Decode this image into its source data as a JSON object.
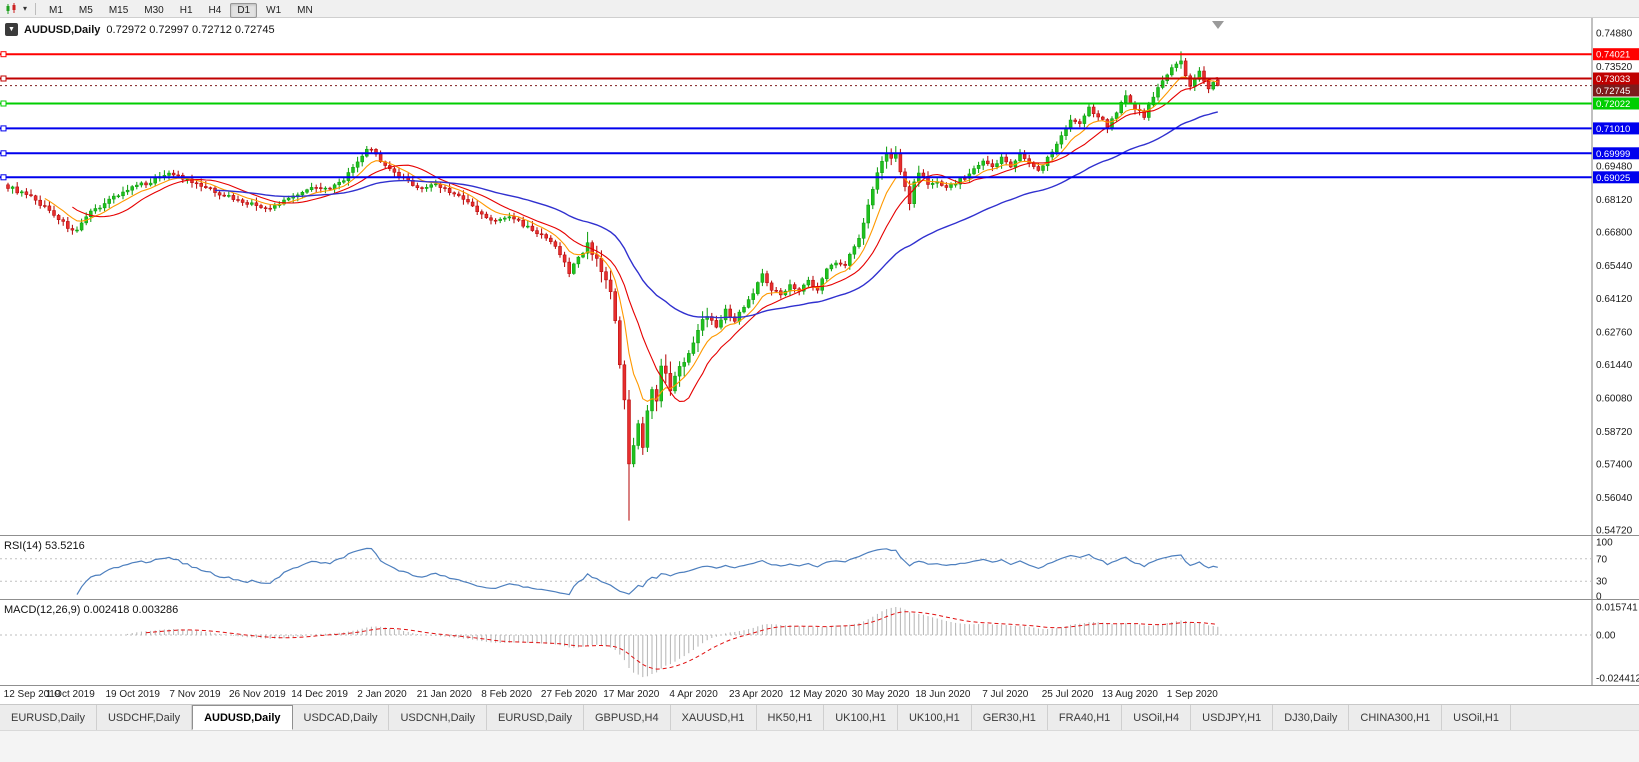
{
  "toolbar": {
    "timeframes": [
      {
        "label": "M1",
        "active": false
      },
      {
        "label": "M5",
        "active": false
      },
      {
        "label": "M15",
        "active": false
      },
      {
        "label": "M30",
        "active": false
      },
      {
        "label": "H1",
        "active": false
      },
      {
        "label": "H4",
        "active": false
      },
      {
        "label": "D1",
        "active": true
      },
      {
        "label": "W1",
        "active": false
      },
      {
        "label": "MN",
        "active": false
      }
    ]
  },
  "chart": {
    "symbol": "AUDUSD,Daily",
    "ohlc_text": "0.72972 0.72997 0.72712 0.72745",
    "quick_trade_glyph": "▼",
    "bid": {
      "label": "0.72745",
      "price": 0.72745,
      "color": "#7d1b1b"
    },
    "hlines": [
      {
        "label": "0.74021",
        "price": 0.74021,
        "color": "#ff0000"
      },
      {
        "label": "0.73033",
        "price": 0.73033,
        "color": "#c00000"
      },
      {
        "label": "0.72022",
        "price": 0.72022,
        "color": "#00ce00"
      },
      {
        "label": "0.71010",
        "price": 0.7101,
        "color": "#0000ee"
      },
      {
        "label": "0.69999",
        "price": 0.69999,
        "color": "#0000ee"
      },
      {
        "label": "0.69025",
        "price": 0.69025,
        "color": "#0000ee"
      }
    ],
    "price_ticks": [
      "0.74880",
      "0.73520",
      "0.72160",
      "0.70800",
      "0.69480",
      "0.68120",
      "0.66800",
      "0.65440",
      "0.64120",
      "0.62760",
      "0.61440",
      "0.60080",
      "0.58720",
      "0.57400",
      "0.56040",
      "0.54720"
    ],
    "date_labels": [
      "12 Sep 2019",
      "1 Oct 2019",
      "19 Oct 2019",
      "7 Nov 2019",
      "26 Nov 2019",
      "14 Dec 2019",
      "2 Jan 2020",
      "21 Jan 2020",
      "8 Feb 2020",
      "27 Feb 2020",
      "17 Mar 2020",
      "4 Apr 2020",
      "23 Apr 2020",
      "12 May 2020",
      "30 May 2020",
      "18 Jun 2020",
      "7 Jul 2020",
      "25 Jul 2020",
      "13 Aug 2020",
      "1 Sep 2020"
    ]
  },
  "indicators": {
    "rsi": {
      "label": "RSI(14) 53.5216",
      "levels": [
        {
          "value": 100,
          "label": "100"
        },
        {
          "value": 70,
          "label": "70"
        },
        {
          "value": 30,
          "label": "30"
        },
        {
          "value": 0,
          "label": "0"
        }
      ],
      "dashed_levels": [
        70,
        30
      ],
      "line_color": "#4d7fbe"
    },
    "macd": {
      "label": "MACD(12,26,9) 0.002418 0.003286",
      "levels": [
        {
          "label": "0.015741",
          "y": "top"
        },
        {
          "label": "0.00",
          "y": "zero"
        },
        {
          "label": "-0.024412",
          "y": "bottom"
        }
      ],
      "hist_color": "#b4b4b4",
      "signal_color": "#e01010"
    }
  },
  "chart_data": {
    "type": "candlestick",
    "symbol": "AUDUSD",
    "period": "Daily",
    "date_range": [
      "12 Sep 2019",
      "14 Sep 2020"
    ],
    "price_axis_range": [
      0.5472,
      0.7488
    ],
    "num_candles": 264,
    "last_candle": {
      "open": 0.72972,
      "high": 0.72997,
      "low": 0.72712,
      "close": 0.72745
    },
    "key_events": {
      "october_2019_dip": {
        "index": 14,
        "low": 0.667
      },
      "covid_crash_low": {
        "index": 135,
        "close": 0.574,
        "low": 0.551
      },
      "september_2020_peak": {
        "index": 255,
        "close": 0.7375,
        "high": 0.74135
      }
    },
    "close_anchors": [
      [
        0,
        0.6865
      ],
      [
        5,
        0.682
      ],
      [
        9,
        0.677
      ],
      [
        13,
        0.67
      ],
      [
        15,
        0.6685
      ],
      [
        18,
        0.676
      ],
      [
        23,
        0.6825
      ],
      [
        27,
        0.686
      ],
      [
        31,
        0.6885
      ],
      [
        35,
        0.6925
      ],
      [
        40,
        0.688
      ],
      [
        45,
        0.6845
      ],
      [
        50,
        0.681
      ],
      [
        54,
        0.6788
      ],
      [
        57,
        0.6772
      ],
      [
        61,
        0.682
      ],
      [
        64,
        0.6845
      ],
      [
        67,
        0.6868
      ],
      [
        70,
        0.6852
      ],
      [
        73,
        0.6895
      ],
      [
        76,
        0.6958
      ],
      [
        78,
        0.702
      ],
      [
        80,
        0.7
      ],
      [
        82,
        0.6945
      ],
      [
        85,
        0.6905
      ],
      [
        88,
        0.6875
      ],
      [
        90,
        0.6856
      ],
      [
        93,
        0.6876
      ],
      [
        96,
        0.6846
      ],
      [
        100,
        0.68
      ],
      [
        103,
        0.6748
      ],
      [
        106,
        0.6722
      ],
      [
        109,
        0.6745
      ],
      [
        112,
        0.6712
      ],
      [
        115,
        0.6678
      ],
      [
        118,
        0.6638
      ],
      [
        120,
        0.6595
      ],
      [
        121,
        0.6552
      ],
      [
        122,
        0.6516
      ],
      [
        124,
        0.658
      ],
      [
        126,
        0.6622
      ],
      [
        128,
        0.6582
      ],
      [
        130,
        0.6482
      ],
      [
        131,
        0.6422
      ],
      [
        132,
        0.6315
      ],
      [
        133,
        0.6135
      ],
      [
        134,
        0.5985
      ],
      [
        135,
        0.574
      ],
      [
        136,
        0.5802
      ],
      [
        137,
        0.59
      ],
      [
        138,
        0.5822
      ],
      [
        139,
        0.5952
      ],
      [
        140,
        0.6052
      ],
      [
        141,
        0.5982
      ],
      [
        142,
        0.6132
      ],
      [
        144,
        0.6052
      ],
      [
        146,
        0.6122
      ],
      [
        148,
        0.62
      ],
      [
        150,
        0.6282
      ],
      [
        152,
        0.635
      ],
      [
        154,
        0.6302
      ],
      [
        156,
        0.6362
      ],
      [
        158,
        0.6322
      ],
      [
        160,
        0.6382
      ],
      [
        162,
        0.6432
      ],
      [
        164,
        0.6512
      ],
      [
        166,
        0.6452
      ],
      [
        168,
        0.6422
      ],
      [
        170,
        0.6472
      ],
      [
        172,
        0.6442
      ],
      [
        174,
        0.6482
      ],
      [
        176,
        0.6442
      ],
      [
        178,
        0.6532
      ],
      [
        180,
        0.6562
      ],
      [
        182,
        0.6552
      ],
      [
        184,
        0.6622
      ],
      [
        185,
        0.6662
      ],
      [
        187,
        0.6782
      ],
      [
        188,
        0.6852
      ],
      [
        189,
        0.6932
      ],
      [
        190,
        0.6962
      ],
      [
        191,
        0.7002
      ],
      [
        192,
        0.6982
      ],
      [
        193,
        0.7002
      ],
      [
        194,
        0.6932
      ],
      [
        195,
        0.6862
      ],
      [
        196,
        0.6792
      ],
      [
        197,
        0.6882
      ],
      [
        198,
        0.6922
      ],
      [
        200,
        0.6872
      ],
      [
        202,
        0.6892
      ],
      [
        204,
        0.6862
      ],
      [
        206,
        0.6882
      ],
      [
        208,
        0.6902
      ],
      [
        210,
        0.6932
      ],
      [
        212,
        0.6962
      ],
      [
        214,
        0.6942
      ],
      [
        216,
        0.6982
      ],
      [
        218,
        0.6952
      ],
      [
        220,
        0.6992
      ],
      [
        222,
        0.6962
      ],
      [
        224,
        0.6932
      ],
      [
        226,
        0.6982
      ],
      [
        228,
        0.7042
      ],
      [
        230,
        0.7102
      ],
      [
        231,
        0.7142
      ],
      [
        233,
        0.7122
      ],
      [
        235,
        0.7182
      ],
      [
        237,
        0.7152
      ],
      [
        239,
        0.7112
      ],
      [
        241,
        0.7172
      ],
      [
        243,
        0.7232
      ],
      [
        245,
        0.7182
      ],
      [
        247,
        0.7152
      ],
      [
        249,
        0.7232
      ],
      [
        251,
        0.7292
      ],
      [
        253,
        0.7352
      ],
      [
        255,
        0.7375
      ],
      [
        256,
        0.731
      ],
      [
        257,
        0.727
      ],
      [
        258,
        0.73
      ],
      [
        259,
        0.733
      ],
      [
        260,
        0.729
      ],
      [
        261,
        0.726
      ],
      [
        262,
        0.728
      ],
      [
        263,
        0.72745
      ]
    ],
    "moving_averages": [
      {
        "name": "fast",
        "type": "ema",
        "period": 8,
        "color": "#ff9900"
      },
      {
        "name": "medium",
        "type": "sma",
        "period": 14,
        "color": "#e60000"
      },
      {
        "name": "slow",
        "type": "ema",
        "period": 45,
        "color": "#3030cf"
      }
    ],
    "candle_colors": {
      "up_fill": "#1fc11f",
      "up_stroke": "#089b08",
      "down_fill": "#e62e2e",
      "down_stroke": "#b30000"
    }
  },
  "tabs": [
    {
      "label": "EURUSD,Daily",
      "active": false
    },
    {
      "label": "USDCHF,Daily",
      "active": false
    },
    {
      "label": "AUDUSD,Daily",
      "active": true
    },
    {
      "label": "USDCAD,Daily",
      "active": false
    },
    {
      "label": "USDCNH,Daily",
      "active": false
    },
    {
      "label": "EURUSD,Daily",
      "active": false
    },
    {
      "label": "GBPUSD,H4",
      "active": false
    },
    {
      "label": "XAUUSD,H1",
      "active": false
    },
    {
      "label": "HK50,H1",
      "active": false
    },
    {
      "label": "UK100,H1",
      "active": false
    },
    {
      "label": "UK100,H1",
      "active": false
    },
    {
      "label": "GER30,H1",
      "active": false
    },
    {
      "label": "FRA40,H1",
      "active": false
    },
    {
      "label": "USOil,H4",
      "active": false
    },
    {
      "label": "USDJPY,H1",
      "active": false
    },
    {
      "label": "DJ30,Daily",
      "active": false
    },
    {
      "label": "CHINA300,H1",
      "active": false
    },
    {
      "label": "USOil,H1",
      "active": false
    }
  ]
}
